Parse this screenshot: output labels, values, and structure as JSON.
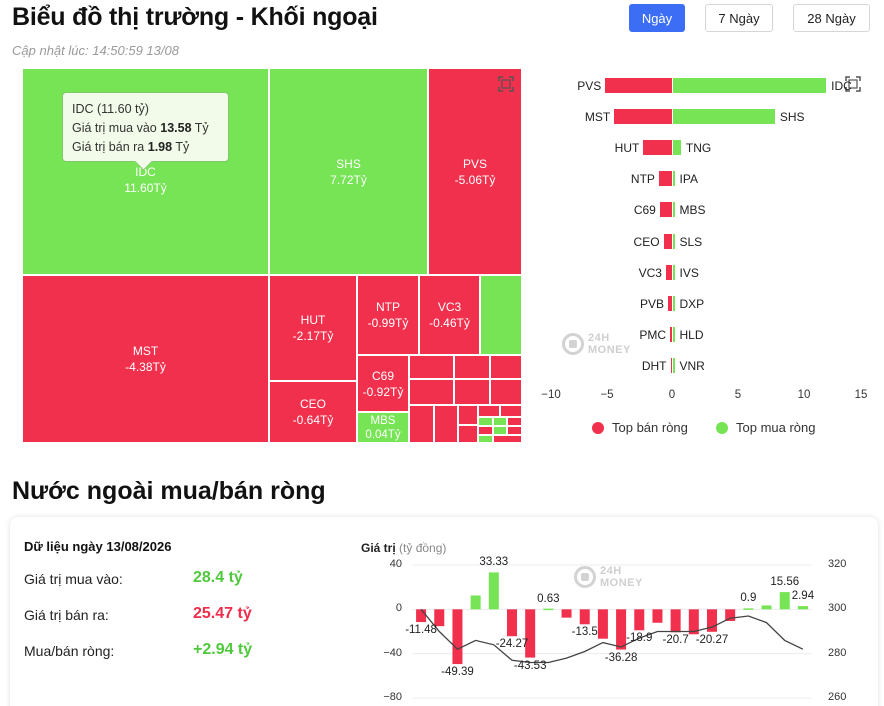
{
  "header": {
    "title": "Biểu đồ thị trường - Khối ngoại",
    "updated": "Cập nhật lúc: 14:50:59 13/08",
    "tabs": [
      "Ngày",
      "7 Ngày",
      "28 Ngày"
    ],
    "active_tab": "Ngày"
  },
  "treemap": {
    "cells": [
      {
        "name": "IDC",
        "value": "11.60Tỷ",
        "color": "#76e454"
      },
      {
        "name": "SHS",
        "value": "7.72Tỷ",
        "color": "#76e454"
      },
      {
        "name": "PVS",
        "value": "-5.06Tỷ",
        "color": "#f0304c"
      },
      {
        "name": "MST",
        "value": "-4.38Tỷ",
        "color": "#f0304c"
      },
      {
        "name": "HUT",
        "value": "-2.17Tỷ",
        "color": "#f0304c"
      },
      {
        "name": "NTP",
        "value": "-0.99Tỷ",
        "color": "#f0304c"
      },
      {
        "name": "VC3",
        "value": "-0.46Tỷ",
        "color": "#f0304c"
      },
      {
        "name": "C69",
        "value": "-0.92Tỷ",
        "color": "#f0304c"
      },
      {
        "name": "CEO",
        "value": "-0.64Tỷ",
        "color": "#f0304c"
      },
      {
        "name": "MBS",
        "value": "0.04Tỷ",
        "color": "#76e454"
      }
    ],
    "tooltip": {
      "line1": "IDC (11.60 tỷ)",
      "buy_label": "Giá trị mua vào",
      "buy_value": "13.58",
      "sell_label": "Giá trị bán ra",
      "sell_value": "1.98",
      "unit": "Tỷ"
    }
  },
  "top_chart": {
    "sell": [
      {
        "code": "PVS",
        "value": -5.06
      },
      {
        "code": "MST",
        "value": -4.38
      },
      {
        "code": "HUT",
        "value": -2.17
      },
      {
        "code": "NTP",
        "value": -0.99
      },
      {
        "code": "C69",
        "value": -0.92
      },
      {
        "code": "CEO",
        "value": -0.64
      },
      {
        "code": "VC3",
        "value": -0.46
      },
      {
        "code": "PVB",
        "value": -0.3
      },
      {
        "code": "PMC",
        "value": -0.15
      },
      {
        "code": "DHT",
        "value": -0.1
      }
    ],
    "buy": [
      {
        "code": "IDC",
        "value": 11.6
      },
      {
        "code": "SHS",
        "value": 7.72
      },
      {
        "code": "TNG",
        "value": 0.6
      },
      {
        "code": "IPA",
        "value": 0.1
      },
      {
        "code": "MBS",
        "value": 0.04
      },
      {
        "code": "SLS",
        "value": 0.03
      },
      {
        "code": "IVS",
        "value": 0.03
      },
      {
        "code": "DXP",
        "value": 0.02
      },
      {
        "code": "HLD",
        "value": 0.02
      },
      {
        "code": "VNR",
        "value": 0.01
      }
    ],
    "x_ticks": [
      "−10",
      "−5",
      "0",
      "5",
      "10",
      "15"
    ],
    "legend_sell": "Top bán ròng",
    "legend_buy": "Top mua ròng",
    "sell_color": "#f0304c",
    "buy_color": "#76e454"
  },
  "watermark": {
    "line1": "24H",
    "line2": "MONEY"
  },
  "section2": {
    "title": "Nước ngoài mua/bán ròng",
    "date_label": "Dữ liệu ngày 13/08/2026",
    "buy_label": "Giá trị mua vào:",
    "buy_value": "28.4 tỷ",
    "sell_label": "Giá trị bán ra:",
    "sell_value": "25.47 tỷ",
    "net_label": "Mua/bán ròng:",
    "net_value": "+2.94 tỷ"
  },
  "chart_data": {
    "type": "bar",
    "title": "Giá trị",
    "ylabel_unit": "(tỷ đồng)",
    "y_ticks": [
      "40",
      "0",
      "−40",
      "−80"
    ],
    "y2_ticks": [
      "320",
      "300",
      "280",
      "260"
    ],
    "ylim": [
      -80,
      40
    ],
    "y2lim": [
      260,
      320
    ],
    "series": [
      {
        "values": [
          -11.48,
          -15.2,
          -49.39,
          12.5,
          33.33,
          -24.27,
          -43.53,
          0.63,
          -7.5,
          -13.5,
          -26.5,
          -36.28,
          -18.9,
          -12.1,
          -20.7,
          -22.5,
          -20.27,
          -10.5,
          0.9,
          3.5,
          15.56,
          2.94
        ]
      }
    ],
    "value_labels": [
      "-11.48",
      "-49.39",
      "33.33",
      "-24.27",
      "-43.53",
      "0.63",
      "-13.5",
      "-36.28",
      "-18.9",
      "-20.7",
      "-20.27",
      "0.9",
      "15.56",
      "2.94"
    ],
    "line": {
      "values": [
        300,
        290,
        282,
        286,
        284,
        277,
        276,
        276,
        278,
        281,
        285,
        283,
        287,
        290,
        290,
        290,
        292,
        296,
        297,
        294,
        286,
        282
      ]
    }
  }
}
